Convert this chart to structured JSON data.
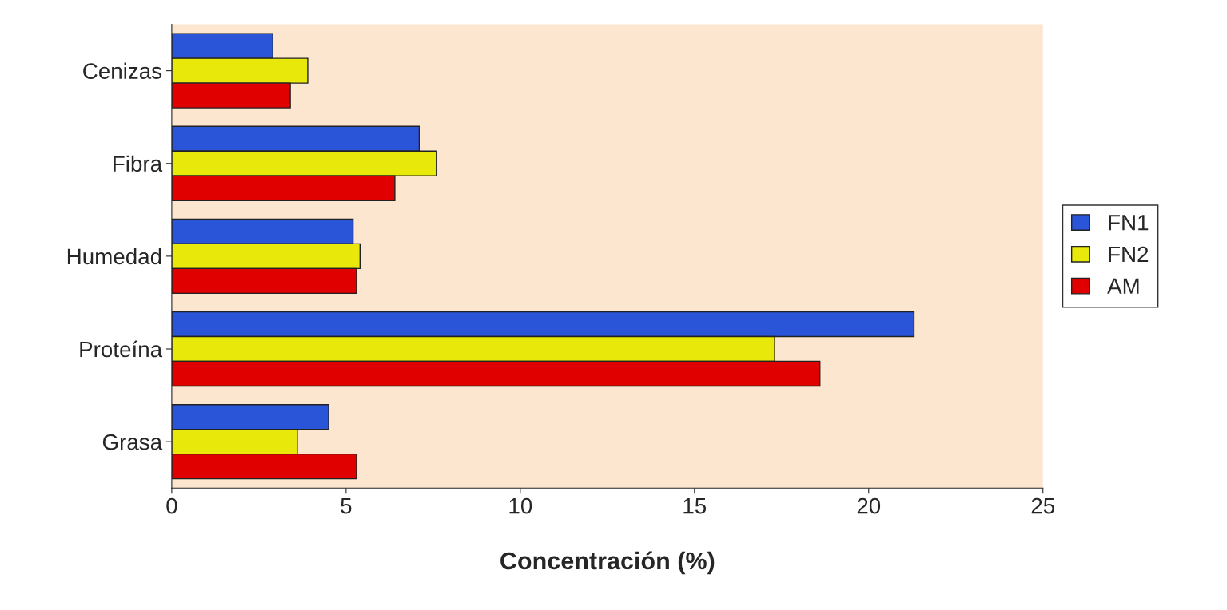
{
  "chart_data": {
    "type": "bar",
    "orientation": "horizontal",
    "xlabel": "Concentración (%)",
    "categories": [
      "Cenizas",
      "Fibra",
      "Humedad",
      "Proteína",
      "Grasa"
    ],
    "series": [
      {
        "name": "FN1",
        "color": "#2b55d8",
        "values": [
          2.9,
          7.1,
          5.2,
          21.3,
          4.5
        ]
      },
      {
        "name": "FN2",
        "color": "#e8e80a",
        "values": [
          3.9,
          7.6,
          5.4,
          17.3,
          3.6
        ]
      },
      {
        "name": "AM",
        "color": "#e00000",
        "values": [
          3.4,
          6.4,
          5.3,
          18.6,
          5.3
        ]
      }
    ],
    "xlim": [
      0,
      25
    ],
    "xticks": [
      0,
      5,
      10,
      15,
      20,
      25
    ],
    "grid": false,
    "legend": "right"
  }
}
